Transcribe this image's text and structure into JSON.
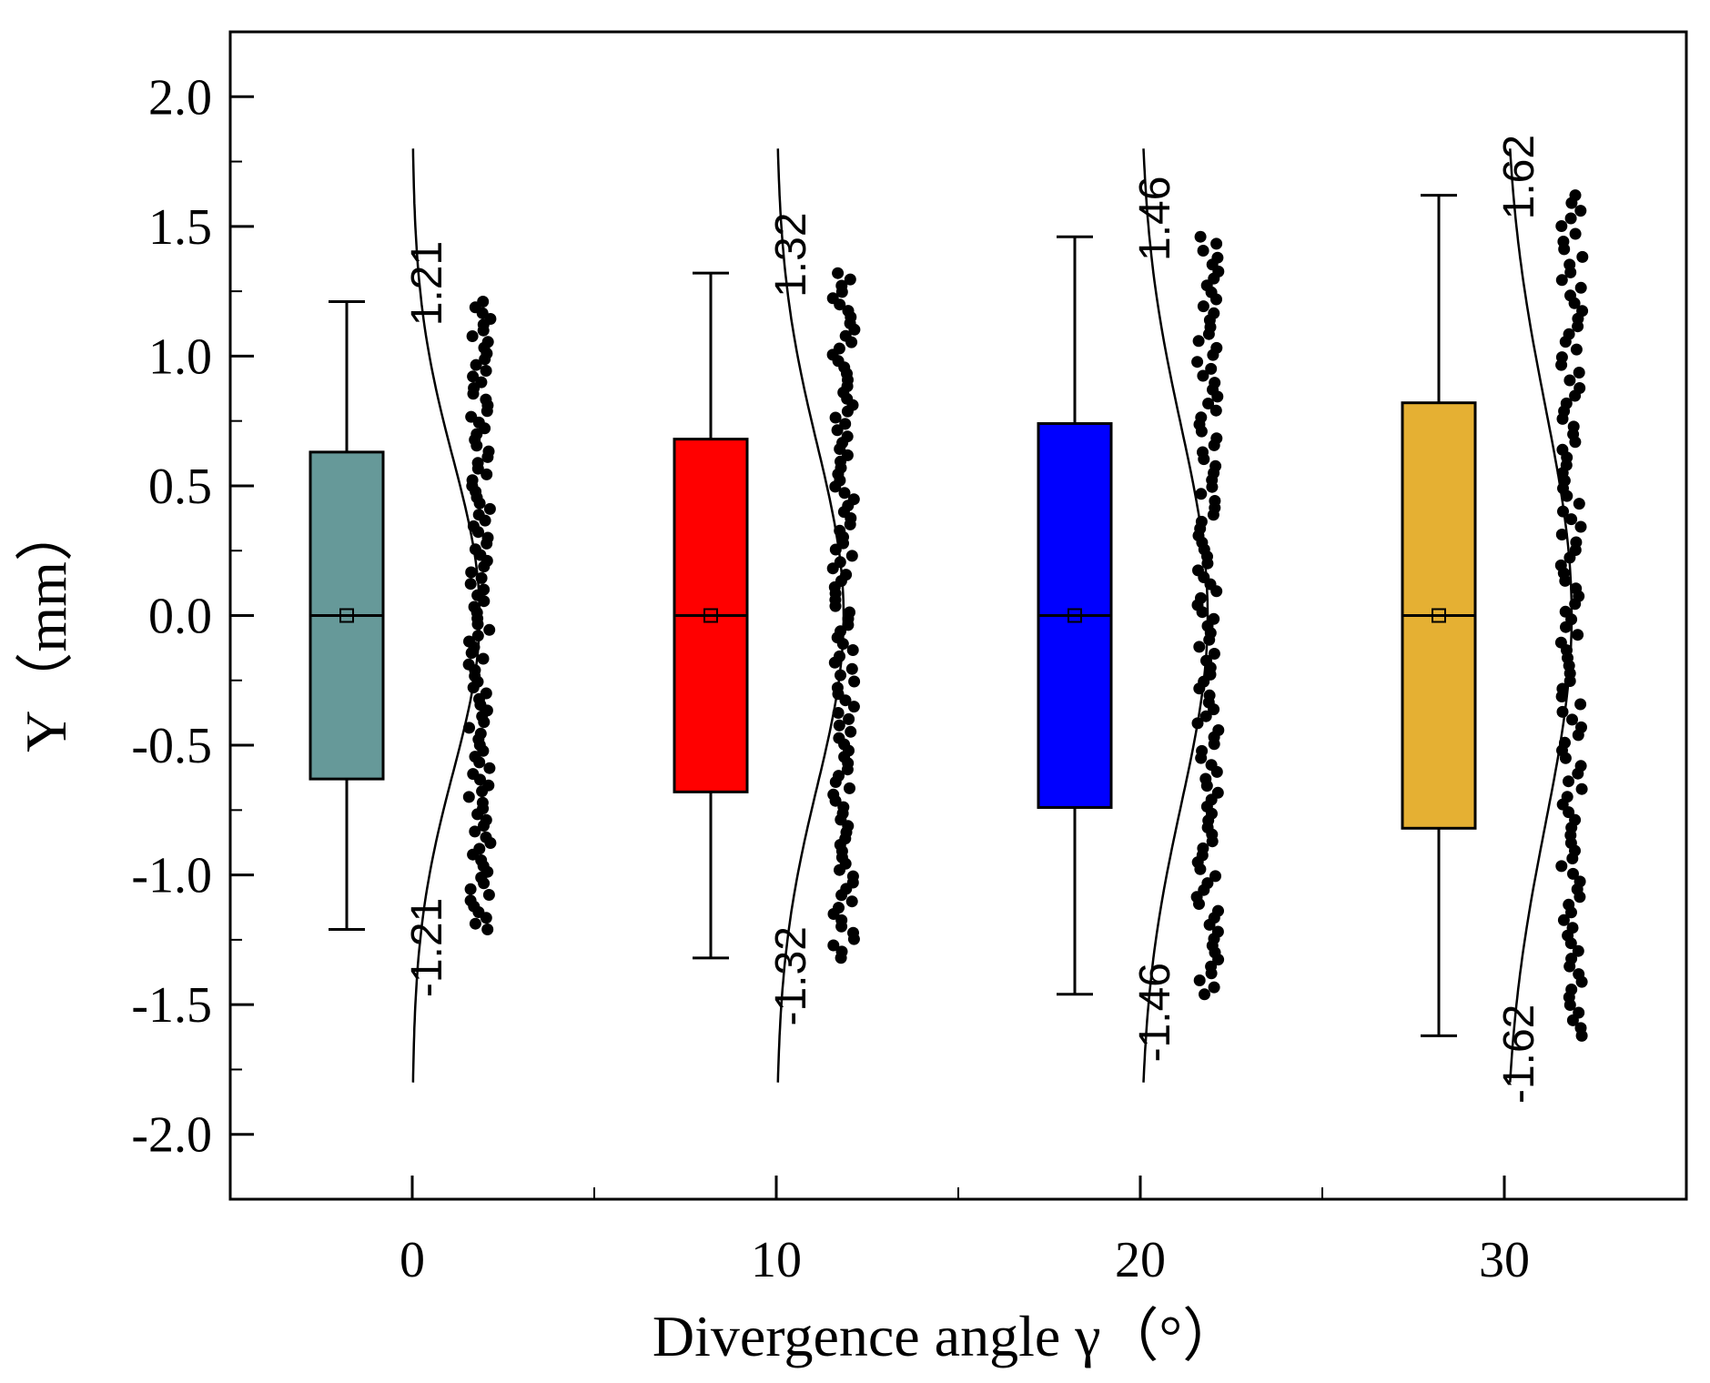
{
  "chart_data": {
    "type": "box",
    "title": "",
    "xlabel": "Divergence angle γ（°）",
    "ylabel": "Y（mm）",
    "ylim": [
      -2.25,
      2.25
    ],
    "xlim": [
      -5,
      35
    ],
    "yticks": [
      "2.0",
      "1.5",
      "1.0",
      "0.5",
      "0.0",
      "-0.5",
      "-1.0",
      "-1.5",
      "-2.0"
    ],
    "xticks": [
      "0",
      "10",
      "20",
      "30"
    ],
    "groups": [
      {
        "angle": 0,
        "label": "0",
        "color": "#669999",
        "q1": -0.63,
        "q3": 0.63,
        "median": 0,
        "mean": 0,
        "whisker_low": -1.21,
        "whisker_high": 1.21,
        "annot_high": "1.21",
        "annot_low": "-1.21"
      },
      {
        "angle": 10,
        "label": "10",
        "color": "#ff0000",
        "q1": -0.68,
        "q3": 0.68,
        "median": 0,
        "mean": 0,
        "whisker_low": -1.32,
        "whisker_high": 1.32,
        "annot_high": "1.32",
        "annot_low": "-1.32"
      },
      {
        "angle": 20,
        "label": "20",
        "color": "#0000ff",
        "q1": -0.74,
        "q3": 0.74,
        "median": 0,
        "mean": 0,
        "whisker_low": -1.46,
        "whisker_high": 1.46,
        "annot_high": "1.46",
        "annot_low": "-1.46"
      },
      {
        "angle": 30,
        "label": "30",
        "color": "#e5b033",
        "q1": -0.82,
        "q3": 0.82,
        "median": 0,
        "mean": 0,
        "whisker_low": -1.62,
        "whisker_high": 1.62,
        "annot_high": "1.62",
        "annot_low": "-1.62"
      }
    ],
    "distribution_curve_y_range": [
      -1.8,
      1.8
    ]
  }
}
